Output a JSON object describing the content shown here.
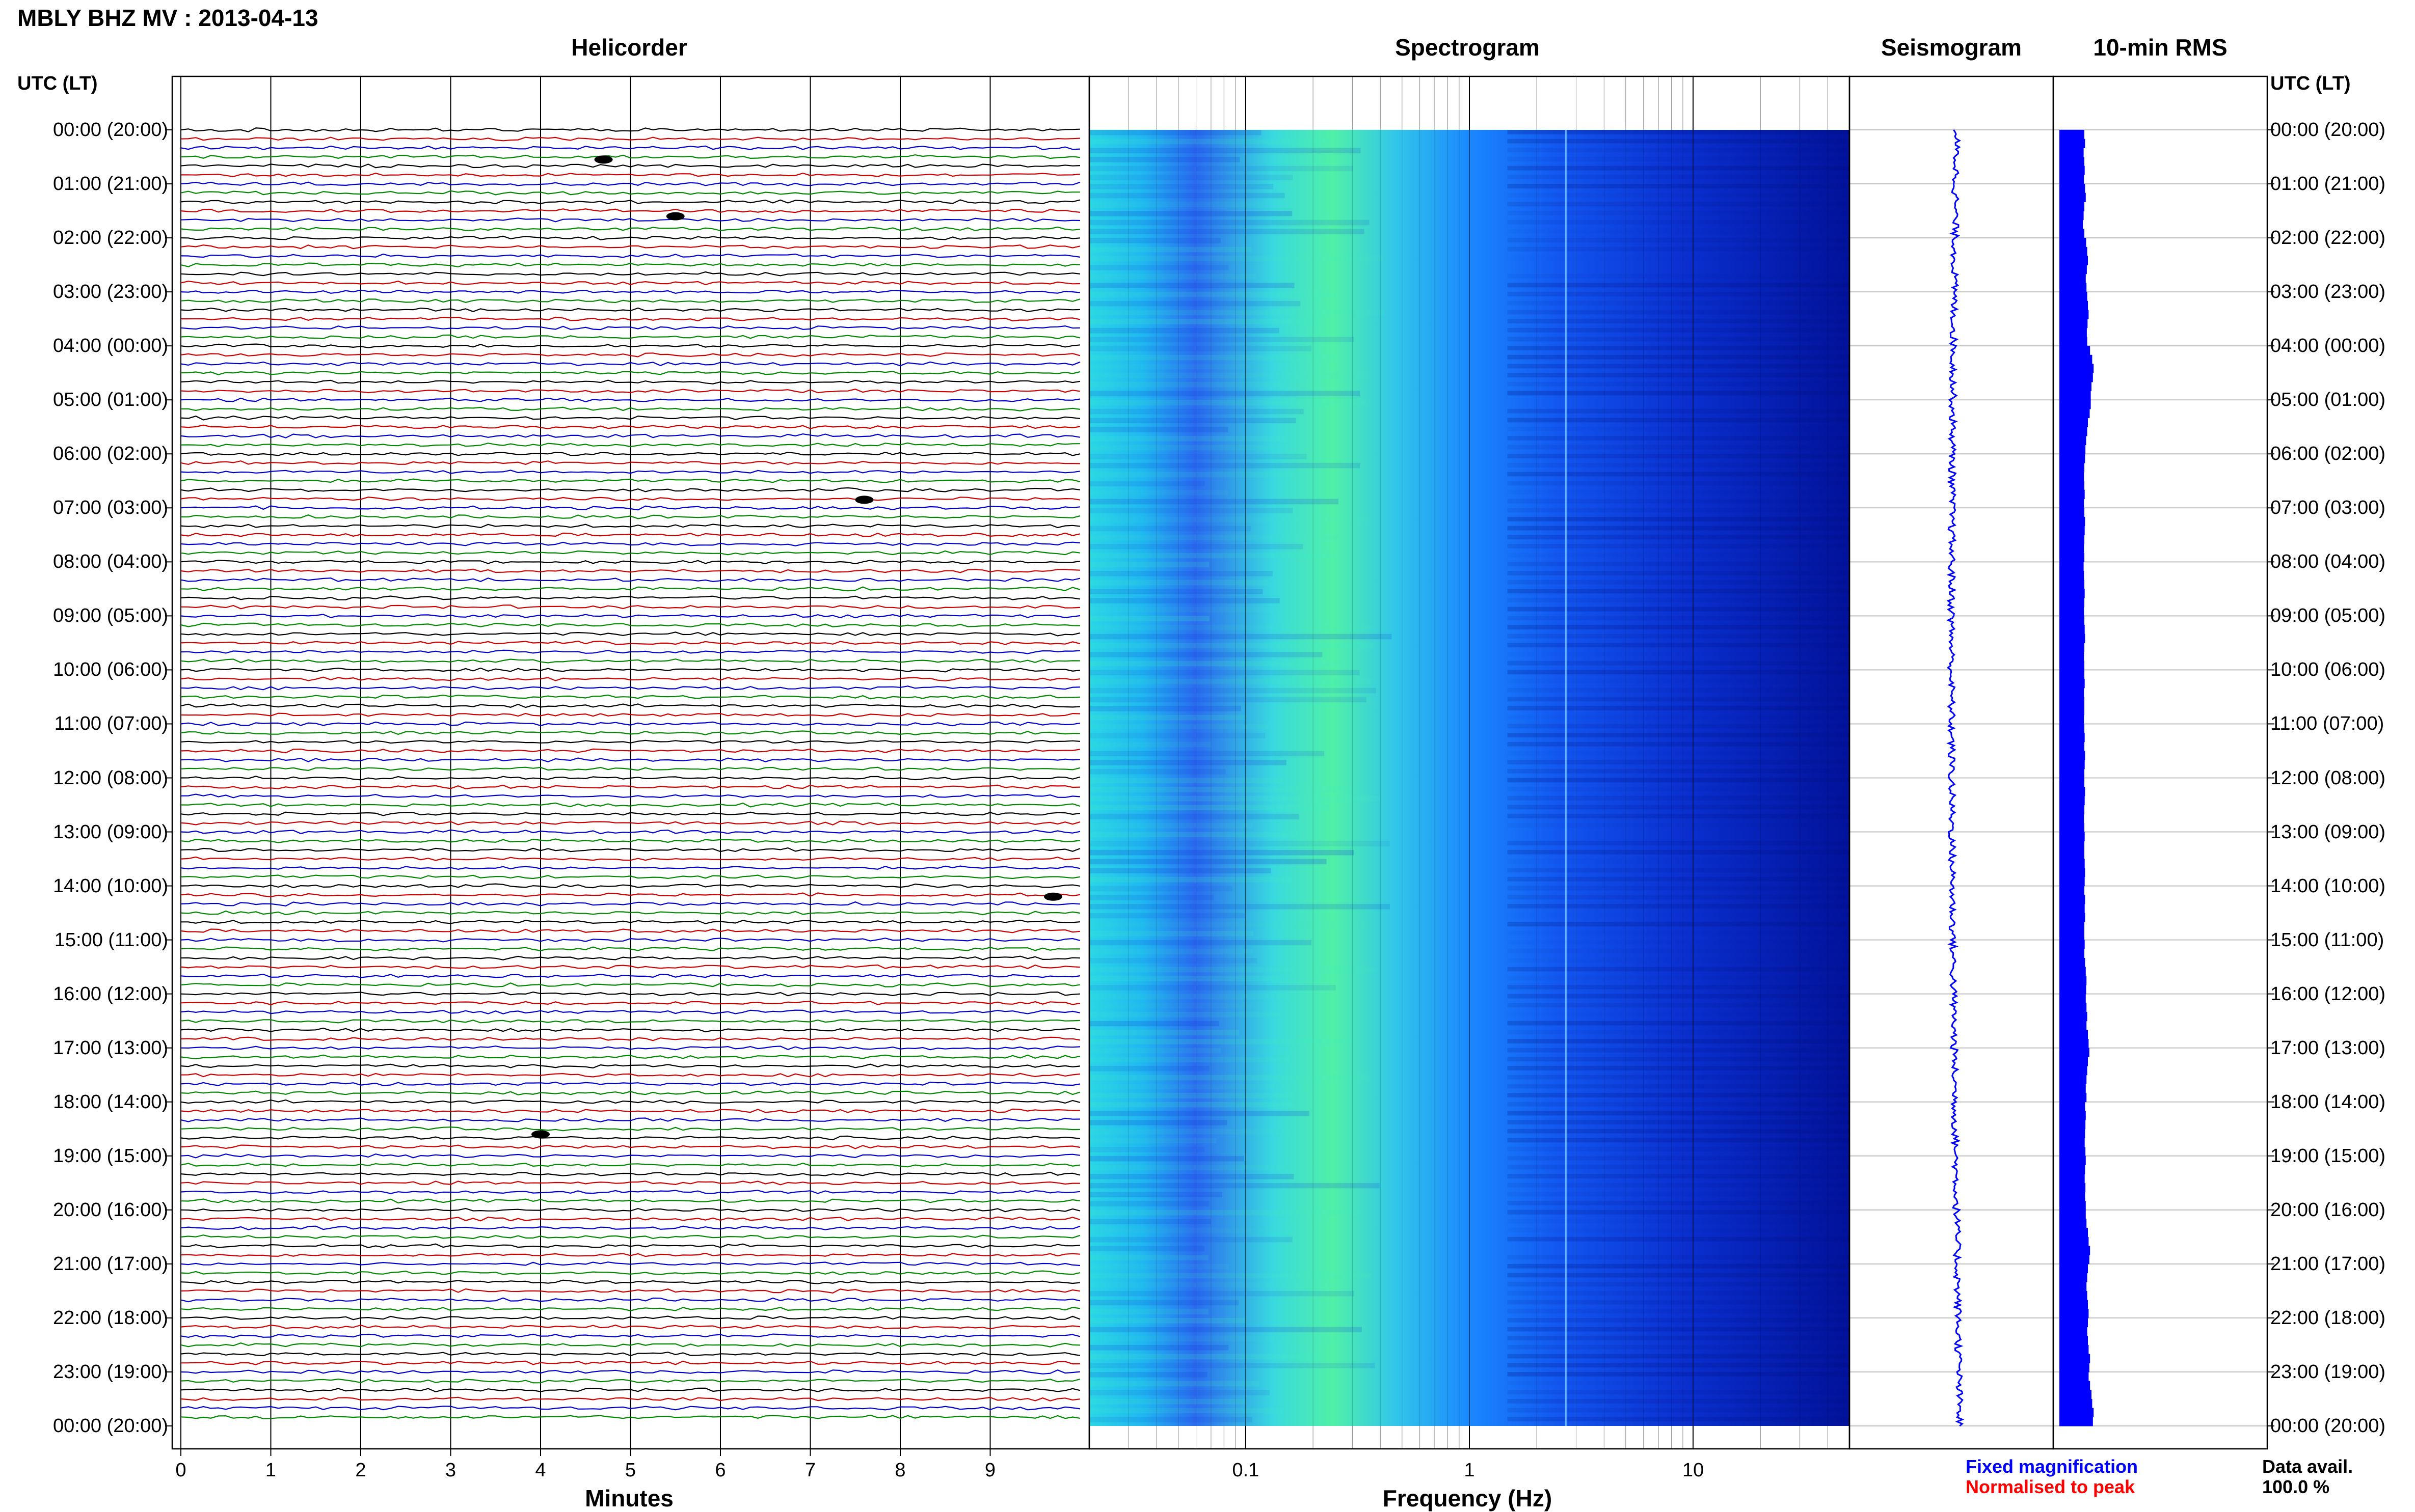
{
  "header": {
    "title": "MBLY BHZ MV : 2013-04-13"
  },
  "panels": {
    "helicorder": "Helicorder",
    "spectrogram": "Spectrogram",
    "seismogram": "Seismogram",
    "rms": "10-min RMS"
  },
  "axes": {
    "utc_header_left": "UTC (LT)",
    "utc_header_right": "UTC (LT)",
    "helicorder_xlabel": "Minutes",
    "spectrogram_xlabel": "Frequency (Hz)"
  },
  "legend": {
    "fixed": "Fixed magnification",
    "normalised": "Normalised to peak",
    "avail_label": "Data avail.",
    "avail_value": "100.0 %"
  },
  "colors": {
    "fixed": "#0000ff",
    "normalised": "#ff0000",
    "trace_cycle": [
      "#000000",
      "#cc0000",
      "#0000cc",
      "#008800"
    ],
    "rms_bar": "#0000ff"
  },
  "chart_data": [
    {
      "type": "line",
      "title": "Helicorder",
      "xlabel": "Minutes",
      "x_ticks": [
        "0",
        "1",
        "2",
        "3",
        "4",
        "5",
        "6",
        "7",
        "8",
        "9"
      ],
      "xlim": [
        0,
        10
      ],
      "time_labels": [
        "00:00 (20:00)",
        "01:00 (21:00)",
        "02:00 (22:00)",
        "03:00 (23:00)",
        "04:00 (00:00)",
        "05:00 (01:00)",
        "06:00 (02:00)",
        "07:00 (03:00)",
        "08:00 (04:00)",
        "09:00 (05:00)",
        "10:00 (06:00)",
        "11:00 (07:00)",
        "12:00 (08:00)",
        "13:00 (09:00)",
        "14:00 (10:00)",
        "15:00 (11:00)",
        "16:00 (12:00)",
        "17:00 (13:00)",
        "18:00 (14:00)",
        "19:00 (15:00)",
        "20:00 (16:00)",
        "21:00 (17:00)",
        "22:00 (18:00)",
        "23:00 (19:00)",
        "00:00 (20:00)"
      ],
      "traces_per_hour": 6,
      "events": [
        {
          "hour": 0.55,
          "minute": 4.7
        },
        {
          "hour": 1.6,
          "minute": 5.5
        },
        {
          "hour": 6.85,
          "minute": 7.6
        },
        {
          "hour": 14.2,
          "minute": 9.7
        },
        {
          "hour": 18.6,
          "minute": 4.0
        }
      ]
    },
    {
      "type": "heatmap",
      "title": "Spectrogram",
      "xlabel": "Frequency (Hz)",
      "x_scale": "log",
      "xlim": [
        0.02,
        50
      ],
      "x_ticks": [
        "0.1",
        "1",
        "10"
      ],
      "x_tick_values": [
        0.1,
        1,
        10
      ],
      "colormap": [
        "#00007a",
        "#0000c8",
        "#1a55ff",
        "#1aa8ff",
        "#33e0e0",
        "#66ff99"
      ]
    },
    {
      "type": "line",
      "title": "Seismogram",
      "gridlines": "hourly"
    },
    {
      "type": "bar",
      "title": "10-min RMS",
      "orientation": "horizontal",
      "intervals": 144,
      "values": [
        0.7,
        0.72,
        0.68,
        0.7,
        0.71,
        0.69,
        0.72,
        0.74,
        0.7,
        0.68,
        0.66,
        0.7,
        0.75,
        0.78,
        0.8,
        0.77,
        0.74,
        0.76,
        0.78,
        0.8,
        0.82,
        0.79,
        0.77,
        0.78,
        0.86,
        0.92,
        0.96,
        0.94,
        0.9,
        0.88,
        0.88,
        0.85,
        0.8,
        0.78,
        0.75,
        0.73,
        0.72,
        0.7,
        0.69,
        0.7,
        0.71,
        0.69,
        0.7,
        0.72,
        0.71,
        0.7,
        0.69,
        0.7,
        0.68,
        0.69,
        0.7,
        0.71,
        0.7,
        0.69,
        0.7,
        0.71,
        0.72,
        0.7,
        0.69,
        0.7,
        0.7,
        0.71,
        0.69,
        0.7,
        0.7,
        0.69,
        0.7,
        0.71,
        0.7,
        0.72,
        0.71,
        0.7,
        0.7,
        0.72,
        0.71,
        0.7,
        0.69,
        0.7,
        0.71,
        0.7,
        0.7,
        0.71,
        0.72,
        0.71,
        0.7,
        0.72,
        0.71,
        0.72,
        0.7,
        0.7,
        0.71,
        0.7,
        0.72,
        0.74,
        0.76,
        0.75,
        0.74,
        0.76,
        0.78,
        0.76,
        0.8,
        0.82,
        0.84,
        0.8,
        0.78,
        0.76,
        0.74,
        0.76,
        0.72,
        0.74,
        0.73,
        0.72,
        0.71,
        0.73,
        0.74,
        0.72,
        0.71,
        0.73,
        0.72,
        0.74,
        0.74,
        0.76,
        0.8,
        0.82,
        0.86,
        0.84,
        0.8,
        0.78,
        0.76,
        0.78,
        0.8,
        0.82,
        0.8,
        0.78,
        0.8,
        0.82,
        0.86,
        0.84,
        0.82,
        0.86,
        0.9,
        0.92,
        0.96,
        0.94
      ]
    }
  ]
}
